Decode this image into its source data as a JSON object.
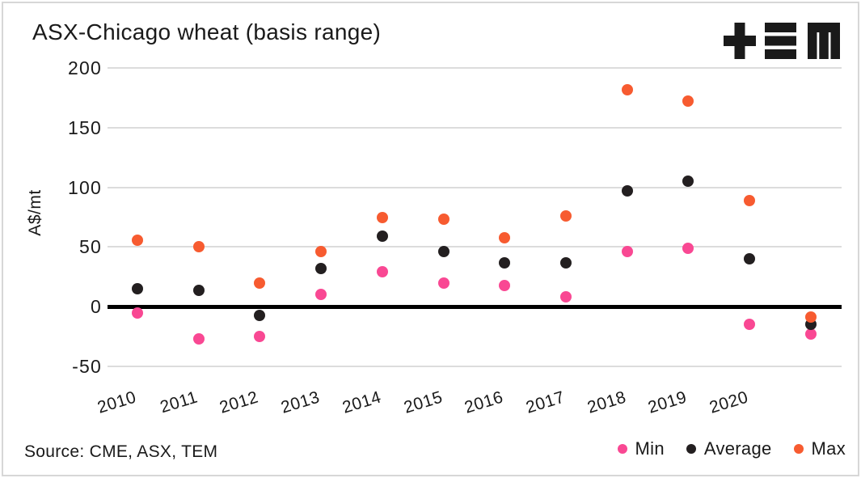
{
  "header": {
    "title": "ASX-Chicago wheat (basis range)",
    "logo_name": "TEM"
  },
  "source": "Source: CME, ASX, TEM",
  "colors": {
    "min": "#f94893",
    "average": "#231f20",
    "max": "#f75b30",
    "grid": "#dcdcdc",
    "zero_line": "#000000",
    "text": "#1a1a1a"
  },
  "chart_data": {
    "type": "scatter",
    "title": "ASX-Chicago wheat (basis range)",
    "xlabel": "",
    "ylabel": "A$/mt",
    "ylim": [
      -50,
      200
    ],
    "yticks": [
      200,
      150,
      100,
      50,
      0,
      -50
    ],
    "categories": [
      "2010",
      "2011",
      "2012",
      "2013",
      "2014",
      "2015",
      "2016",
      "2017",
      "2018",
      "2019",
      "2020",
      ""
    ],
    "grid": true,
    "zero_line_emphasized": true,
    "legend_position": "bottom-right",
    "series": [
      {
        "name": "Min",
        "color": "#f94893",
        "values": [
          -5,
          -27,
          -25,
          10,
          29,
          20,
          18,
          8,
          46,
          49,
          -15,
          -23
        ]
      },
      {
        "name": "Average",
        "color": "#231f20",
        "values": [
          15,
          14,
          -7,
          32,
          59,
          46,
          37,
          37,
          97,
          105,
          40,
          -15
        ]
      },
      {
        "name": "Max",
        "color": "#f75b30",
        "values": [
          56,
          50,
          20,
          46,
          75,
          73,
          58,
          76,
          182,
          172,
          89,
          -9
        ]
      }
    ]
  }
}
